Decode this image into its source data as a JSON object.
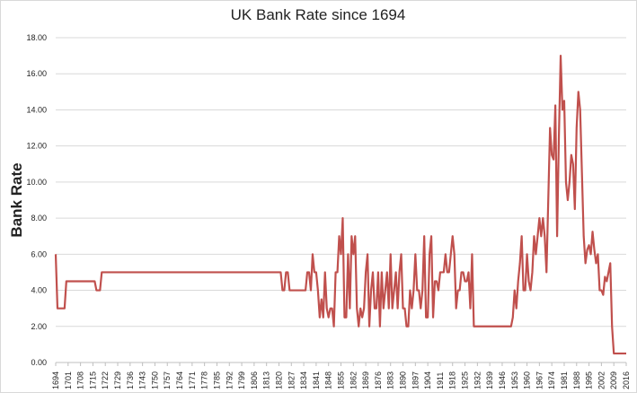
{
  "chart_data": {
    "type": "line",
    "title": "UK Bank Rate since 1694",
    "y_label": "Bank Rate",
    "color": "#c0504d",
    "grid": true,
    "xlim": [
      1694,
      2016
    ],
    "xticks": [
      1694,
      1701,
      1708,
      1715,
      1722,
      1729,
      1736,
      1743,
      1750,
      1757,
      1764,
      1771,
      1778,
      1785,
      1792,
      1799,
      1806,
      1813,
      1820,
      1827,
      1834,
      1841,
      1848,
      1855,
      1862,
      1869,
      1876,
      1883,
      1890,
      1897,
      1904,
      1911,
      1918,
      1925,
      1932,
      1939,
      1946,
      1953,
      1960,
      1967,
      1974,
      1981,
      1988,
      1995,
      2002,
      2009,
      2016
    ],
    "ylim": [
      0,
      18
    ],
    "yticks": [
      {
        "value": 0,
        "label": "0.00"
      },
      {
        "value": 2,
        "label": "2.00"
      },
      {
        "value": 4,
        "label": "4.00"
      },
      {
        "value": 6,
        "label": "6.00"
      },
      {
        "value": 8,
        "label": "8.00"
      },
      {
        "value": 10,
        "label": "10.00"
      },
      {
        "value": 12,
        "label": "12.00"
      },
      {
        "value": 14,
        "label": "14.00"
      },
      {
        "value": 16,
        "label": "16.00"
      },
      {
        "value": 18,
        "label": "18.00"
      }
    ],
    "x": [
      1694,
      1695,
      1699,
      1700,
      1716,
      1717,
      1719,
      1720,
      1821,
      1822,
      1823,
      1824,
      1825,
      1826,
      1835,
      1836,
      1837,
      1838,
      1839,
      1840,
      1841,
      1842,
      1843,
      1844,
      1845,
      1846,
      1847,
      1848,
      1849,
      1850,
      1851,
      1852,
      1853,
      1854,
      1855,
      1856,
      1857,
      1858,
      1859,
      1860,
      1861,
      1862,
      1863,
      1864,
      1865,
      1866,
      1867,
      1868,
      1869,
      1870,
      1871,
      1872,
      1873,
      1874,
      1875,
      1876,
      1877,
      1878,
      1879,
      1880,
      1881,
      1882,
      1883,
      1884,
      1885,
      1886,
      1887,
      1888,
      1889,
      1890,
      1891,
      1892,
      1893,
      1894,
      1895,
      1896,
      1897,
      1898,
      1899,
      1900,
      1901,
      1902,
      1903,
      1904,
      1905,
      1906,
      1907,
      1908,
      1909,
      1910,
      1911,
      1912,
      1913,
      1914,
      1915,
      1916,
      1917,
      1918,
      1919,
      1920,
      1921,
      1922,
      1923,
      1924,
      1925,
      1926,
      1927,
      1928,
      1929,
      1930,
      1951,
      1952,
      1953,
      1954,
      1955,
      1956,
      1957,
      1958,
      1959,
      1960,
      1961,
      1962,
      1963,
      1964,
      1965,
      1966,
      1967,
      1968,
      1969,
      1970,
      1971,
      1972,
      1973,
      1974,
      1975,
      1976,
      1977,
      1978,
      1979,
      1980,
      1981,
      1982,
      1983,
      1984,
      1985,
      1986,
      1987,
      1988,
      1989,
      1990,
      1991,
      1992,
      1993,
      1994,
      1995,
      1996,
      1997,
      1998,
      1999,
      2000,
      2001,
      2002,
      2003,
      2004,
      2005,
      2006,
      2007,
      2008,
      2009,
      2016
    ],
    "values": [
      6,
      3,
      3,
      4.5,
      4.5,
      4,
      4,
      5,
      5,
      4,
      4,
      5,
      5,
      4,
      4,
      5,
      5,
      4,
      6,
      5,
      5,
      4,
      2.5,
      3.5,
      2.5,
      5,
      3,
      2.5,
      3,
      3,
      2,
      5,
      5,
      7,
      6,
      8,
      2.5,
      2.5,
      6,
      3,
      7,
      6,
      7,
      3,
      2,
      3,
      2.5,
      3,
      5,
      6,
      2,
      4,
      5,
      3,
      3,
      5,
      2,
      5,
      3,
      4,
      5,
      3,
      6,
      3,
      4,
      5,
      3,
      5,
      6,
      3,
      3,
      2,
      2,
      4,
      3,
      4,
      6,
      4,
      4,
      3,
      4,
      7,
      2.5,
      2.5,
      6,
      7,
      2.5,
      4.5,
      4.5,
      4,
      5,
      5,
      5,
      6,
      5,
      5,
      6,
      7,
      6,
      3,
      4,
      4,
      5,
      5,
      4.5,
      4.5,
      5,
      3,
      6,
      2,
      2,
      2.5,
      4,
      3,
      4.5,
      5.5,
      7,
      4,
      4,
      6,
      4.5,
      4,
      5,
      7,
      6,
      7,
      8,
      7,
      8,
      7,
      5,
      9,
      13,
      11.5,
      11.25,
      14.25,
      7,
      12.5,
      17,
      14,
      14.5,
      10,
      9,
      10,
      11.5,
      11,
      8.5,
      13,
      15,
      14,
      10.5,
      7,
      5.5,
      6.25,
      6.5,
      6,
      7.25,
      6.25,
      5.5,
      6,
      4,
      4,
      3.75,
      4.75,
      4.5,
      5,
      5.5,
      2,
      0.5,
      0.5
    ]
  }
}
